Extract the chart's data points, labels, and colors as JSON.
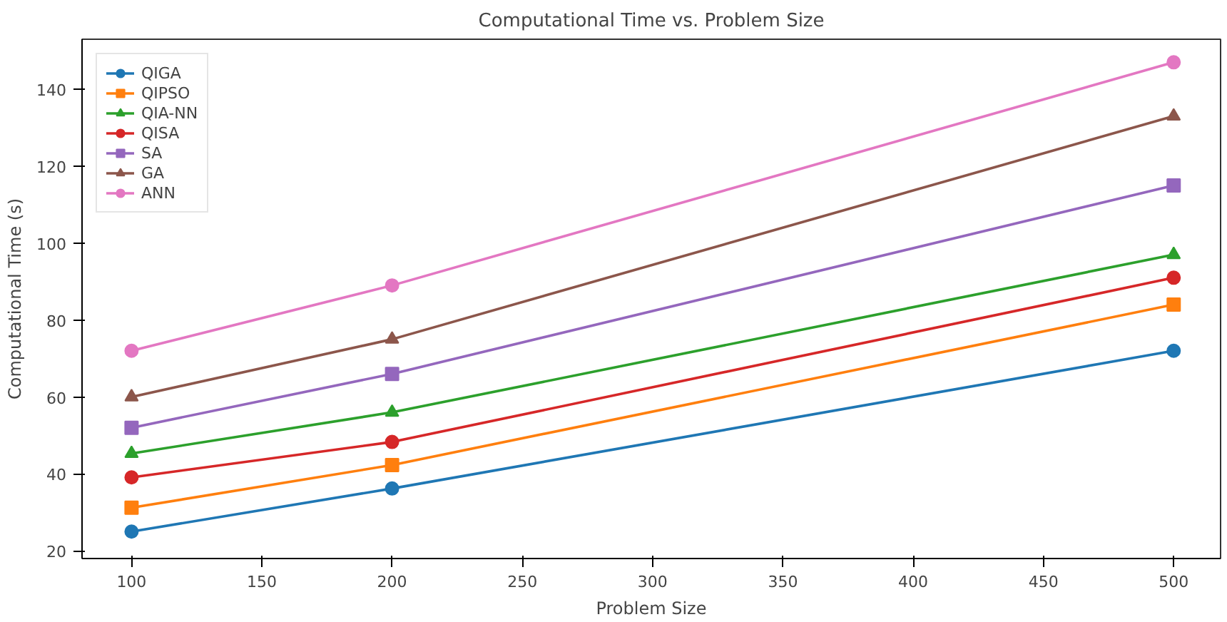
{
  "chart_data": {
    "type": "line",
    "title": "Computational Time vs. Problem Size",
    "xlabel": "Problem Size",
    "ylabel": "Computational Time (s)",
    "x": [
      100,
      200,
      500
    ],
    "xlim": [
      81,
      518
    ],
    "ylim": [
      18,
      153
    ],
    "xticks": [
      100,
      150,
      200,
      250,
      300,
      350,
      400,
      450,
      500
    ],
    "yticks": [
      20,
      40,
      60,
      80,
      100,
      120,
      140
    ],
    "grid": false,
    "legend": "top left",
    "line_style": "solid",
    "series": [
      {
        "name": "QIGA",
        "color": "#1f77b4",
        "marker": "circle",
        "values": [
          25,
          36.2,
          72
        ]
      },
      {
        "name": "QIPSO",
        "color": "#ff7f0e",
        "marker": "square",
        "values": [
          31.2,
          42.3,
          84
        ]
      },
      {
        "name": "QIA-NN",
        "color": "#2ca02c",
        "marker": "triangle",
        "values": [
          45.3,
          56,
          97
        ]
      },
      {
        "name": "QISA",
        "color": "#d62728",
        "marker": "circle",
        "values": [
          39.1,
          48.3,
          91
        ]
      },
      {
        "name": "SA",
        "color": "#9467bd",
        "marker": "square",
        "values": [
          52,
          66,
          115
        ]
      },
      {
        "name": "GA",
        "color": "#8c564b",
        "marker": "triangle",
        "values": [
          60,
          75,
          133
        ]
      },
      {
        "name": "ANN",
        "color": "#e377c2",
        "marker": "circle",
        "values": [
          72,
          89,
          147
        ]
      }
    ]
  }
}
